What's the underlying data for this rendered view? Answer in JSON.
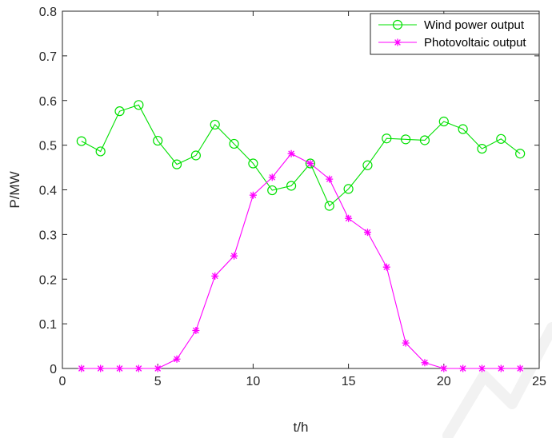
{
  "chart_data": {
    "type": "line",
    "title": "",
    "xlabel": "t/h",
    "ylabel": "P/MW",
    "xlim": [
      0,
      25
    ],
    "ylim": [
      0,
      0.8
    ],
    "xticks": [
      0,
      5,
      10,
      15,
      20,
      25
    ],
    "yticks": [
      0,
      0.1,
      0.2,
      0.3,
      0.4,
      0.5,
      0.6,
      0.7,
      0.8
    ],
    "xtick_labels": [
      "0",
      "5",
      "10",
      "15",
      "20",
      "25"
    ],
    "ytick_labels": [
      "0",
      "0.1",
      "0.2",
      "0.3",
      "0.4",
      "0.5",
      "0.6",
      "0.7",
      "0.8"
    ],
    "grid": false,
    "legend_position": "top-right",
    "x": [
      1,
      2,
      3,
      4,
      5,
      6,
      7,
      8,
      9,
      10,
      11,
      12,
      13,
      14,
      15,
      16,
      17,
      18,
      19,
      20,
      21,
      22,
      23,
      24
    ],
    "series": [
      {
        "name": "Wind power output",
        "color": "#00e000",
        "marker": "circle",
        "values": [
          0.509,
          0.486,
          0.576,
          0.59,
          0.51,
          0.457,
          0.477,
          0.546,
          0.503,
          0.459,
          0.399,
          0.409,
          0.459,
          0.364,
          0.402,
          0.455,
          0.515,
          0.513,
          0.511,
          0.553,
          0.536,
          0.492,
          0.514,
          0.481
        ]
      },
      {
        "name": "Photovoltaic output",
        "color": "#ff00ff",
        "marker": "asterisk",
        "values": [
          0,
          0,
          0,
          0,
          0,
          0.021,
          0.085,
          0.207,
          0.252,
          0.388,
          0.428,
          0.481,
          0.459,
          0.424,
          0.336,
          0.305,
          0.227,
          0.057,
          0.013,
          0,
          0,
          0,
          0,
          0
        ]
      }
    ]
  }
}
